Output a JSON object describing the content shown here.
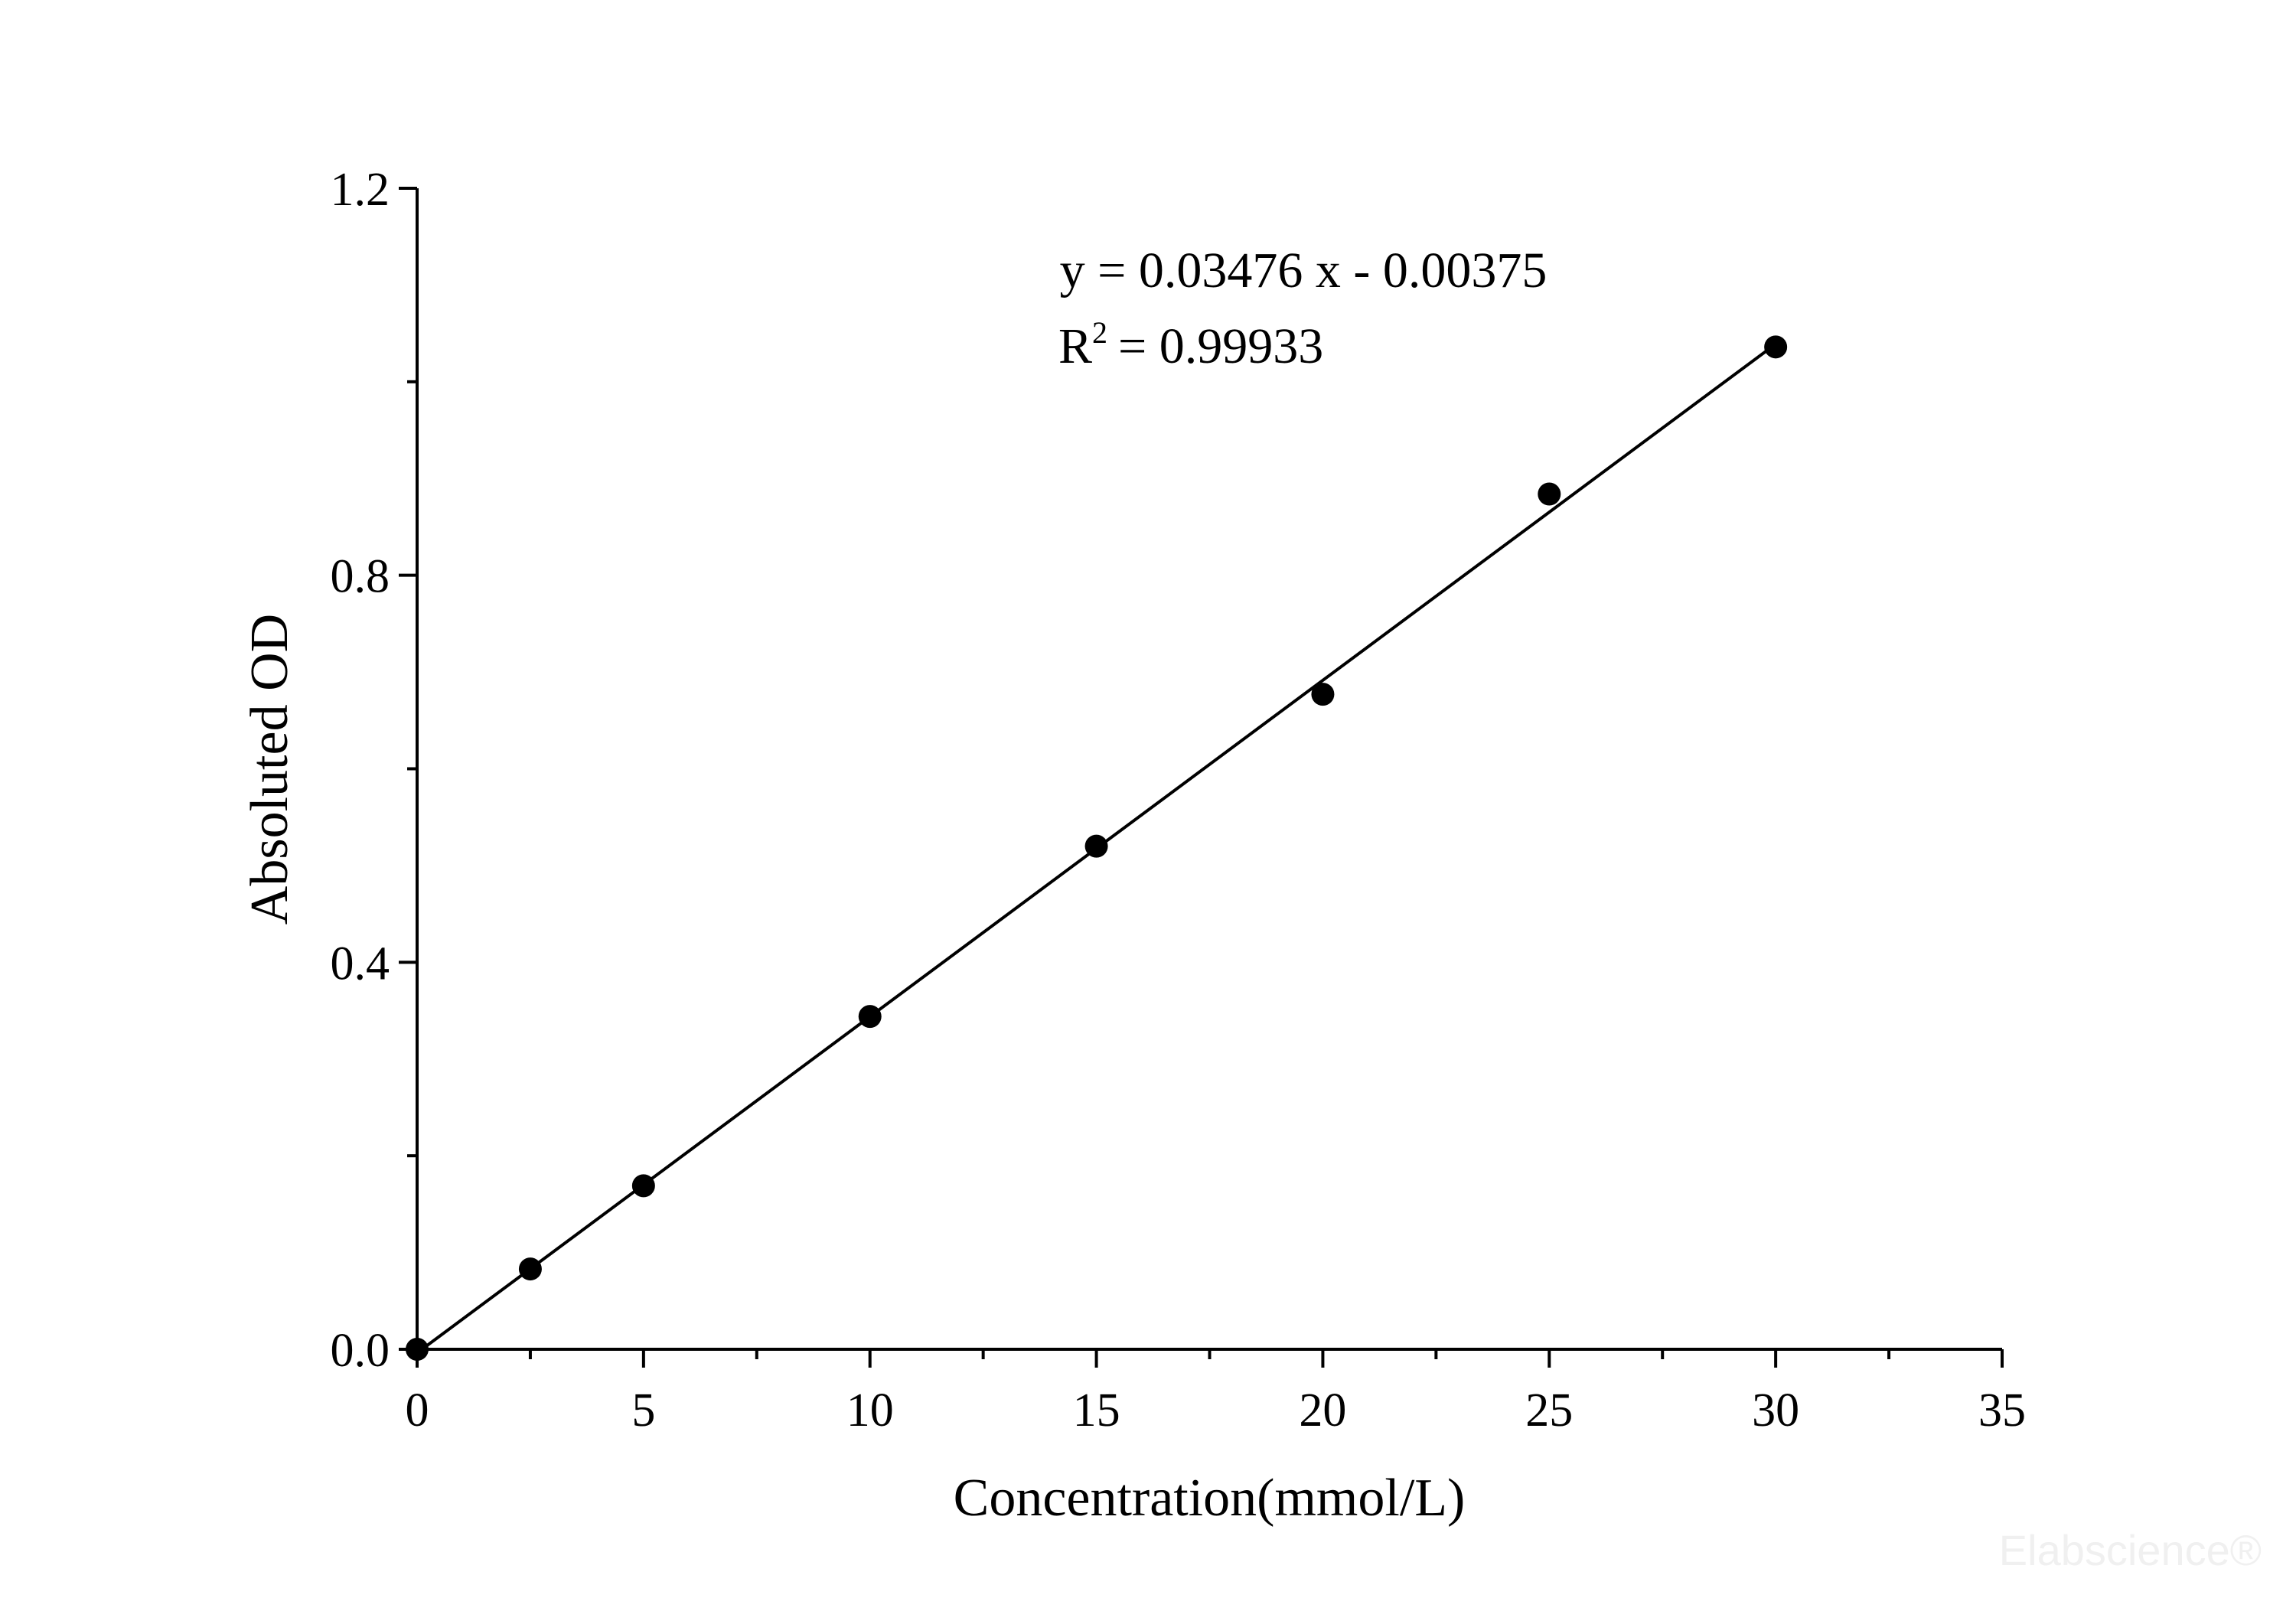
{
  "chart_data": {
    "type": "scatter",
    "xlabel": "Concentration(mmol/L)",
    "ylabel": "Absoluted OD",
    "equation": "y = 0.03476 x - 0.00375",
    "r2_base": "R",
    "r2_sup": "2",
    "r2_rest": "= 0.99933",
    "watermark": "Elabscience®",
    "x": [
      0,
      2.5,
      5,
      10,
      15,
      20,
      25,
      30
    ],
    "values": [
      0,
      0.083,
      0.169,
      0.344,
      0.52,
      0.677,
      0.884,
      1.036
    ],
    "color": "#000000",
    "fit": {
      "slope": 0.03476,
      "intercept": -0.00375
    },
    "xlim": [
      0,
      35
    ],
    "xticks": [
      0,
      5,
      10,
      15,
      20,
      25,
      30,
      35
    ],
    "xminorticks": [
      2.5,
      7.5,
      12.5,
      17.5,
      22.5,
      27.5,
      32.5
    ],
    "ylim": [
      0,
      1.2
    ],
    "yticks": [
      {
        "value": 0,
        "label": "0.0"
      },
      0.4,
      0.8,
      1.2
    ],
    "yminorticks": [
      0.2,
      0.6,
      1.0
    ]
  }
}
